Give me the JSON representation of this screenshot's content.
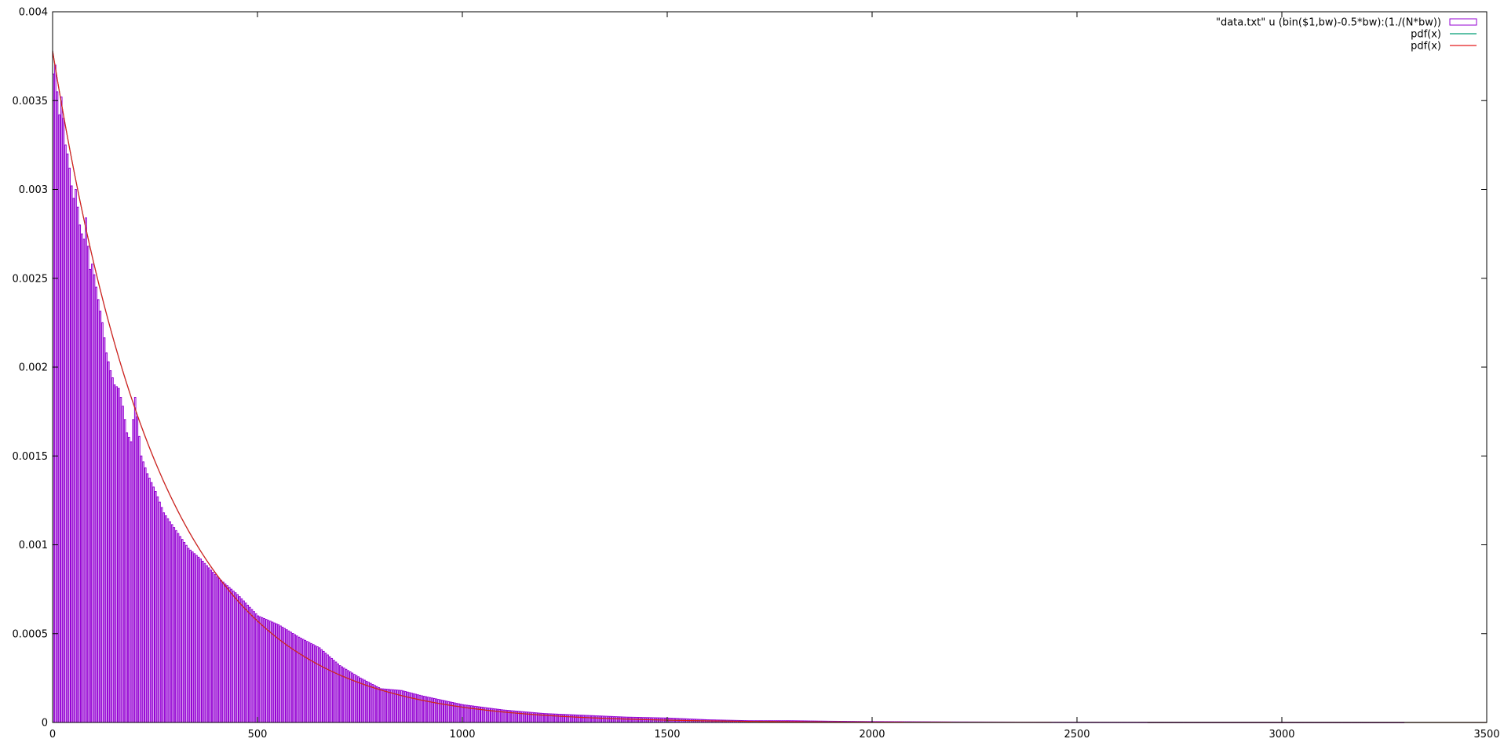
{
  "chart_data": {
    "type": "bar",
    "title": "",
    "xlabel": "",
    "ylabel": "",
    "xlim": [
      0,
      3500
    ],
    "ylim": [
      0,
      0.004
    ],
    "grid": false,
    "legend_position": "top-right",
    "x_ticks": [
      0,
      500,
      1000,
      1500,
      2000,
      2500,
      3000,
      3500
    ],
    "x_tick_labels": [
      "0",
      "500",
      "1000",
      "1500",
      "2000",
      "2500",
      "3000",
      "3500"
    ],
    "y_ticks": [
      0,
      0.0005,
      0.001,
      0.0015,
      0.002,
      0.0025,
      0.003,
      0.0035,
      0.004
    ],
    "y_tick_labels": [
      "0",
      "0.0005",
      "0.001",
      "0.0015",
      "0.002",
      "0.0025",
      "0.003",
      "0.0035",
      "0.004"
    ],
    "series": [
      {
        "name": "\"data.txt\" u (bin($1,bw)-0.5*bw):(1./(N*bw))",
        "kind": "histogram",
        "color": "#9400d3",
        "bin_width": 5,
        "x": [
          0,
          5,
          10,
          15,
          20,
          25,
          30,
          35,
          40,
          45,
          50,
          55,
          60,
          65,
          70,
          75,
          80,
          85,
          90,
          95,
          100,
          110,
          120,
          130,
          140,
          150,
          160,
          170,
          180,
          190,
          200,
          215,
          230,
          250,
          270,
          300,
          330,
          360,
          400,
          450,
          500,
          550,
          600,
          650,
          700,
          750,
          800,
          850,
          900,
          1000,
          1100,
          1200,
          1300,
          1400,
          1500,
          1600,
          1700,
          1800,
          1900,
          2000,
          2100,
          2200,
          2400,
          2600,
          2800,
          3000,
          3200
        ],
        "values": [
          0.00365,
          0.0037,
          0.00355,
          0.00342,
          0.00352,
          0.0034,
          0.00325,
          0.0032,
          0.00312,
          0.00302,
          0.00295,
          0.003,
          0.0029,
          0.0028,
          0.00275,
          0.00272,
          0.00284,
          0.00268,
          0.00255,
          0.00258,
          0.00252,
          0.00238,
          0.00225,
          0.00208,
          0.00198,
          0.0019,
          0.00188,
          0.00178,
          0.00163,
          0.00158,
          0.00183,
          0.0015,
          0.0014,
          0.0013,
          0.00118,
          0.00108,
          0.00098,
          0.00092,
          0.00082,
          0.00072,
          0.0006,
          0.00055,
          0.00048,
          0.00042,
          0.00032,
          0.00025,
          0.00019,
          0.00018,
          0.00015,
          0.0001,
          7e-05,
          5e-05,
          4e-05,
          3e-05,
          2.5e-05,
          1.5e-05,
          1e-05,
          1e-05,
          7e-06,
          5e-06,
          4e-06,
          3e-06,
          2e-06,
          1.5e-06,
          1e-06,
          1e-06,
          5e-07
        ]
      },
      {
        "name": "pdf(x)",
        "kind": "line",
        "color": "#009e73",
        "function": "exponential",
        "lambda": 0.00378
      },
      {
        "name": "pdf(x)",
        "kind": "line",
        "color": "#e41a1c",
        "function": "exponential",
        "lambda": 0.00378
      }
    ]
  }
}
